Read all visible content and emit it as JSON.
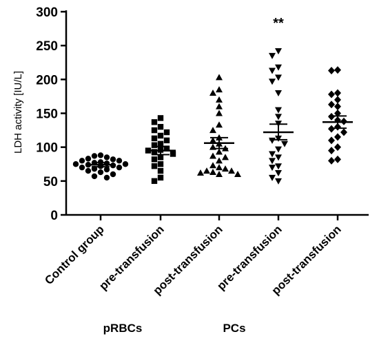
{
  "chart_data": {
    "type": "scatter",
    "ylabel": "LDH activity [IU/L]",
    "ylim": [
      0,
      300
    ],
    "yticks": [
      0,
      50,
      100,
      150,
      200,
      250,
      300
    ],
    "categories": [
      "Control group",
      "pre-transfusion",
      "post-transfusion",
      "pre-transfusion",
      "post-transfusion"
    ],
    "group_labels": [
      {
        "label": "pRBCs",
        "spans": [
          1,
          2
        ]
      },
      {
        "label": "PCs",
        "spans": [
          3,
          4
        ]
      }
    ],
    "series": [
      {
        "category": "Control group",
        "marker": "circle",
        "values": [
          88,
          87,
          85,
          83,
          82,
          80,
          80,
          78,
          77,
          76,
          75,
          75,
          74,
          73,
          72,
          72,
          70,
          70,
          68,
          67,
          65,
          63,
          60,
          57,
          55
        ],
        "mean": 74,
        "sem_upper": 77,
        "sem_lower": 71
      },
      {
        "category": "pre-transfusion",
        "marker": "square",
        "values": [
          143,
          137,
          130,
          125,
          122,
          117,
          113,
          110,
          105,
          103,
          98,
          96,
          95,
          93,
          90,
          85,
          82,
          75,
          72,
          65,
          55,
          50
        ],
        "mean": 95,
        "sem_upper": 101,
        "sem_lower": 89
      },
      {
        "category": "post-transfusion",
        "marker": "triangle-up",
        "values": [
          203,
          185,
          180,
          170,
          160,
          150,
          133,
          125,
          114,
          110,
          105,
          100,
          98,
          93,
          87,
          85,
          80,
          73,
          70,
          68,
          65,
          65,
          63,
          62,
          60,
          60
        ],
        "mean": 106,
        "sem_upper": 114,
        "sem_lower": 98
      },
      {
        "category": "pre-transfusion",
        "marker": "triangle-down",
        "values": [
          242,
          235,
          218,
          213,
          203,
          197,
          180,
          155,
          145,
          135,
          113,
          110,
          105,
          97,
          90,
          85,
          80,
          72,
          70,
          62,
          55,
          50
        ],
        "mean": 122,
        "sem_upper": 134,
        "sem_lower": 111
      },
      {
        "category": "post-transfusion",
        "marker": "diamond",
        "values": [
          214,
          213,
          180,
          178,
          170,
          163,
          160,
          150,
          145,
          140,
          138,
          130,
          127,
          122,
          115,
          110,
          100,
          95,
          82,
          80
        ],
        "mean": 137,
        "sem_upper": 146,
        "sem_lower": 128
      }
    ],
    "annotations": [
      {
        "category_index": 3,
        "text": "**"
      }
    ]
  }
}
